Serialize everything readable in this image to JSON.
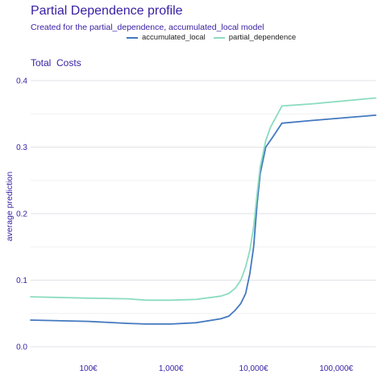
{
  "chart_data": {
    "type": "line",
    "title": "Partial Dependence profile",
    "subtitle": "Created for the partial_dependence, accumulated_local model",
    "panel_title": "Total  Costs",
    "ylabel": "average prediction",
    "xlabel": "",
    "x_scale": "log10",
    "xlim": [
      20,
      300000
    ],
    "ylim": [
      0,
      0.4
    ],
    "x_ticks": [
      {
        "value": 100,
        "label": "100€"
      },
      {
        "value": 1000,
        "label": "1,000€"
      },
      {
        "value": 10000,
        "label": "10,000€"
      },
      {
        "value": 100000,
        "label": "100,000€"
      }
    ],
    "y_ticks": [
      {
        "value": 0.0,
        "label": "0.0"
      },
      {
        "value": 0.1,
        "label": "0.1"
      },
      {
        "value": 0.2,
        "label": "0.2"
      },
      {
        "value": 0.3,
        "label": "0.3"
      },
      {
        "value": 0.4,
        "label": "0.4"
      }
    ],
    "grid": true,
    "legend_position": "top",
    "series": [
      {
        "name": "accumulated_local",
        "color": "#4378bf",
        "points": [
          [
            20,
            0.04
          ],
          [
            100,
            0.038
          ],
          [
            300,
            0.035
          ],
          [
            500,
            0.034
          ],
          [
            1000,
            0.034
          ],
          [
            2000,
            0.036
          ],
          [
            4000,
            0.042
          ],
          [
            5000,
            0.046
          ],
          [
            6000,
            0.055
          ],
          [
            7000,
            0.065
          ],
          [
            8000,
            0.08
          ],
          [
            9000,
            0.11
          ],
          [
            10000,
            0.15
          ],
          [
            11000,
            0.215
          ],
          [
            12000,
            0.26
          ],
          [
            14000,
            0.3
          ],
          [
            17000,
            0.315
          ],
          [
            22000,
            0.336
          ],
          [
            50000,
            0.34
          ],
          [
            300000,
            0.348
          ]
        ]
      },
      {
        "name": "partial_dependence",
        "color": "#8bdcbe",
        "points": [
          [
            20,
            0.075
          ],
          [
            100,
            0.073
          ],
          [
            300,
            0.072
          ],
          [
            500,
            0.07
          ],
          [
            1000,
            0.07
          ],
          [
            2000,
            0.071
          ],
          [
            4000,
            0.076
          ],
          [
            5000,
            0.08
          ],
          [
            6000,
            0.088
          ],
          [
            7000,
            0.1
          ],
          [
            8000,
            0.12
          ],
          [
            9000,
            0.145
          ],
          [
            10000,
            0.18
          ],
          [
            11000,
            0.23
          ],
          [
            12000,
            0.27
          ],
          [
            14000,
            0.31
          ],
          [
            16000,
            0.33
          ],
          [
            22000,
            0.362
          ],
          [
            50000,
            0.365
          ],
          [
            300000,
            0.374
          ]
        ]
      }
    ]
  }
}
